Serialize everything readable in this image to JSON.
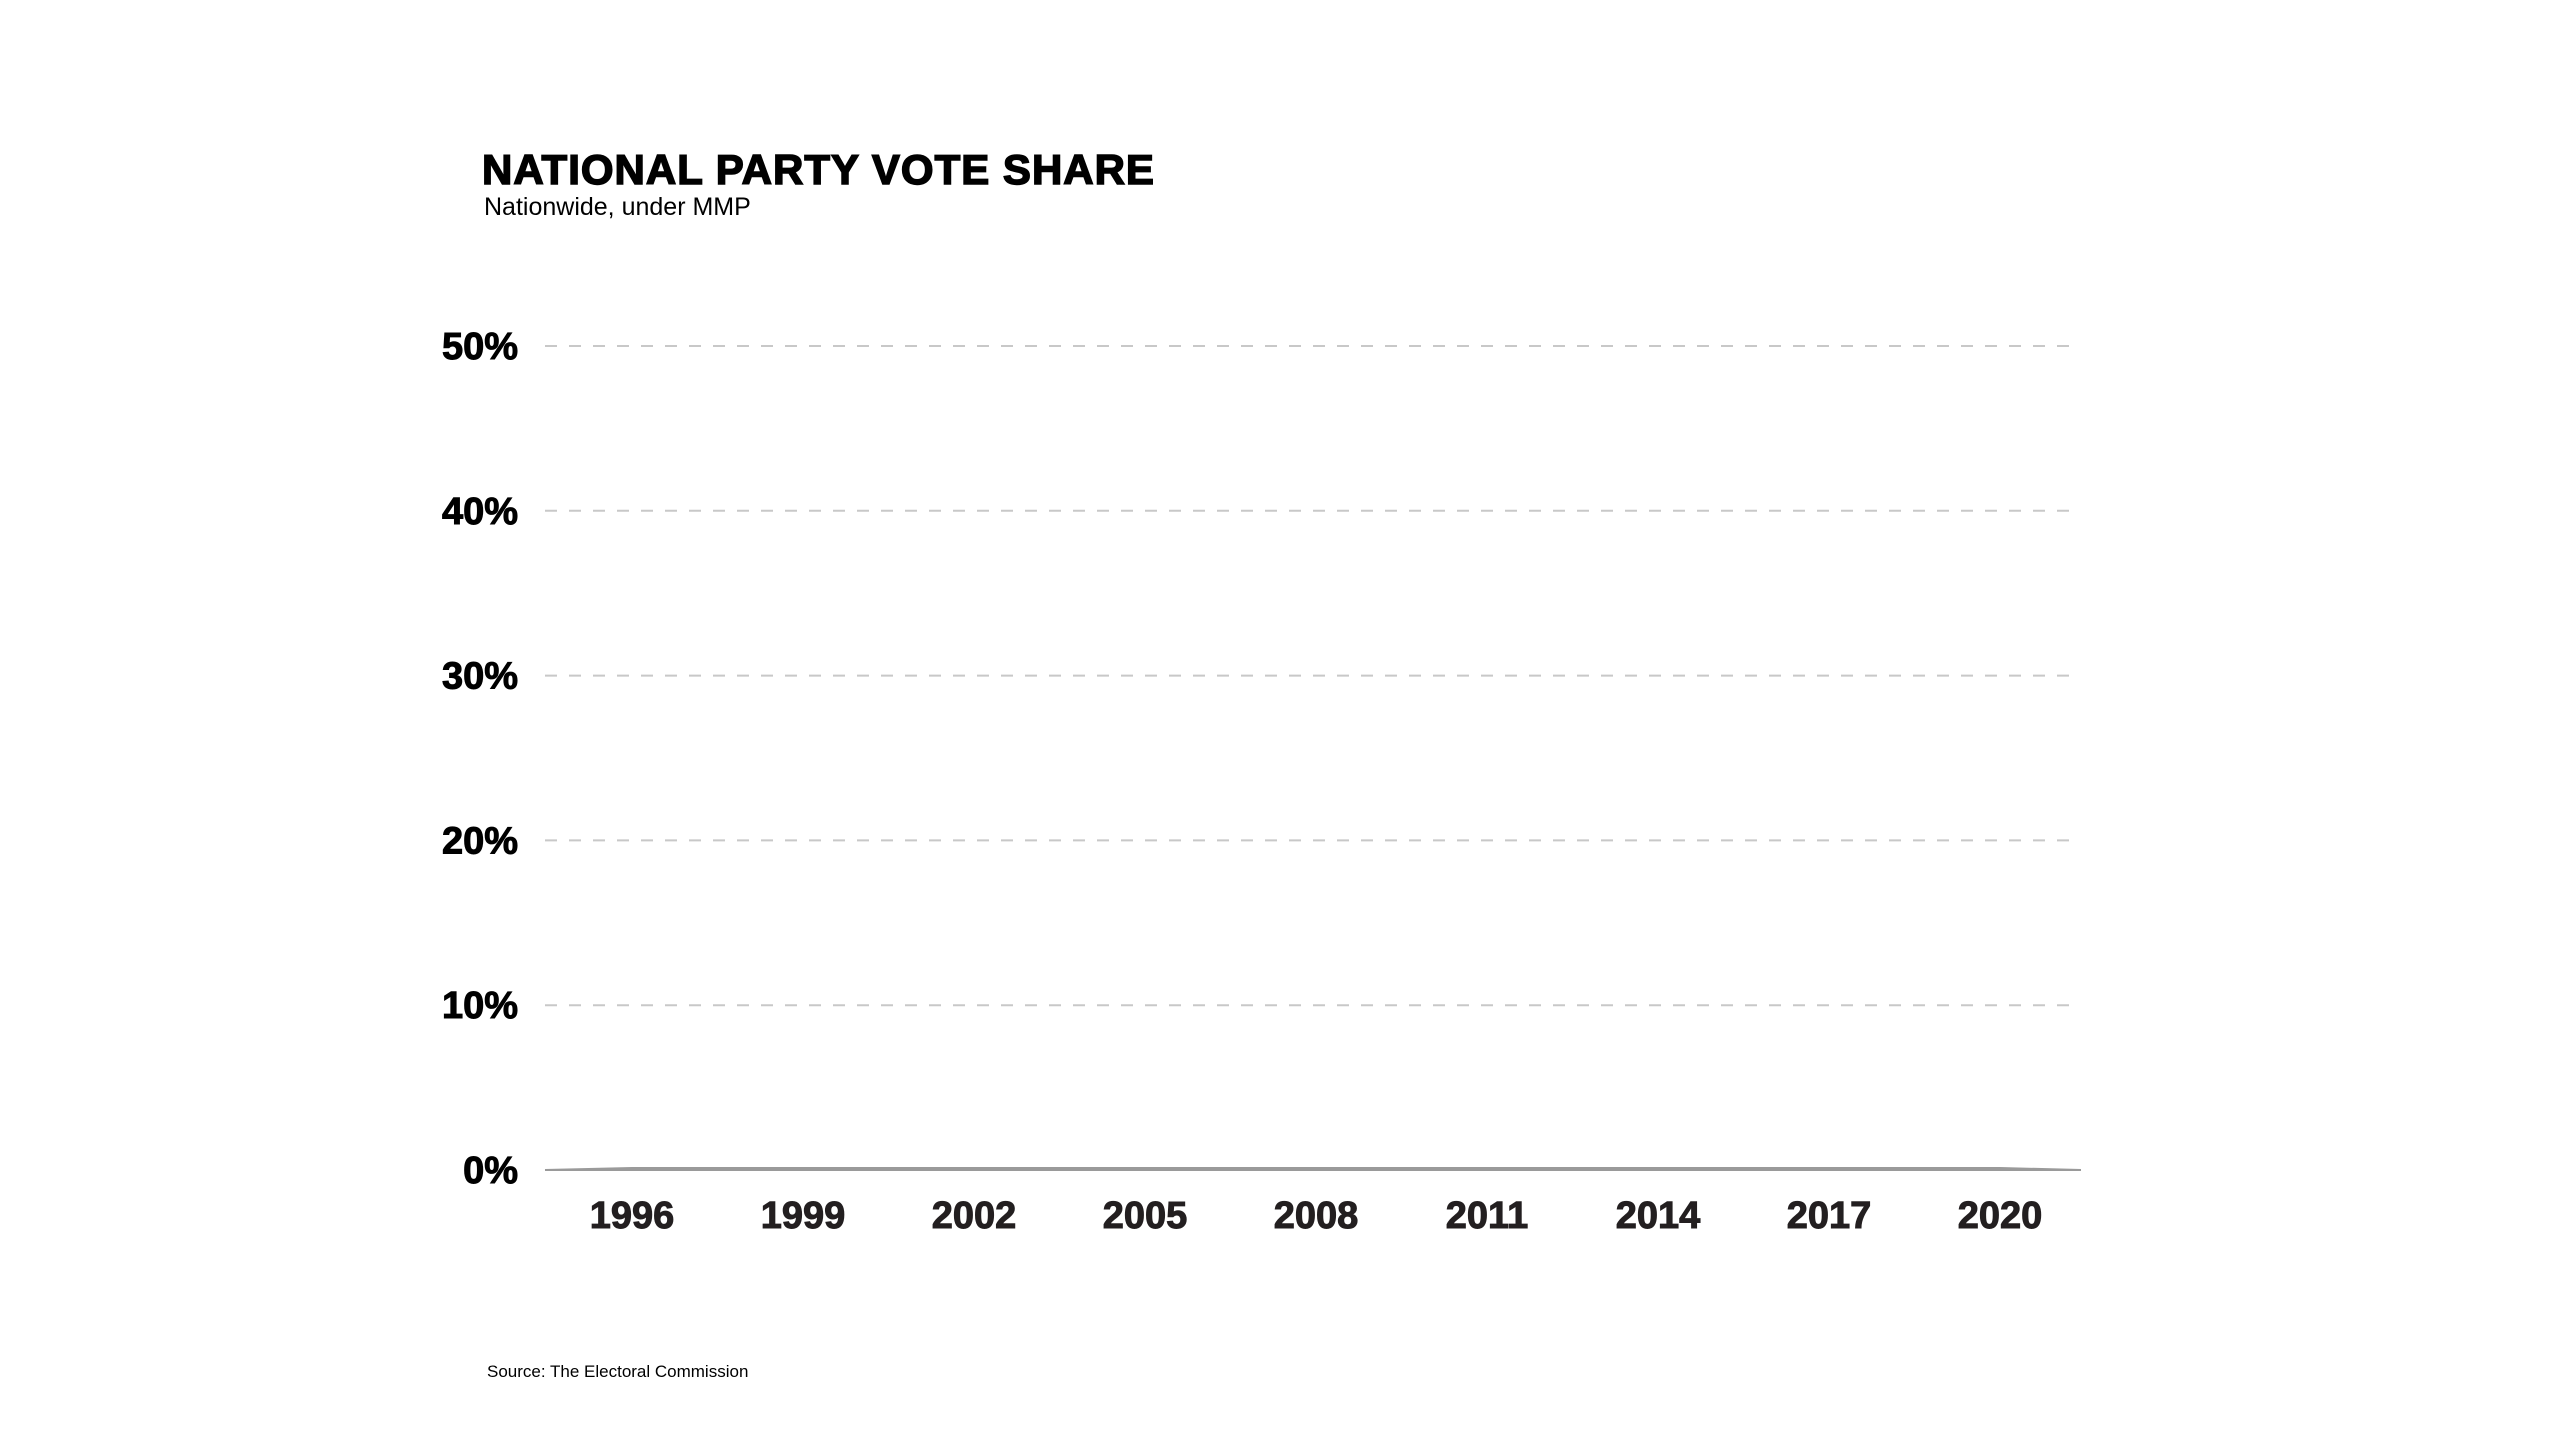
{
  "chart_data": {
    "type": "area",
    "title": "NATIONAL PARTY VOTE SHARE",
    "subtitle": "Nationwide, under MMP",
    "source": "Source: The Electoral Commission",
    "x": [
      "1996",
      "1999",
      "2002",
      "2005",
      "2008",
      "2011",
      "2014",
      "2017",
      "2020"
    ],
    "values": [
      0,
      0,
      0,
      0,
      0,
      0,
      0,
      0,
      0
    ],
    "ylim": [
      0,
      50
    ],
    "yticks": [
      "0%",
      "10%",
      "20%",
      "30%",
      "40%",
      "50%"
    ],
    "ytick_values": [
      0,
      10,
      20,
      30,
      40,
      50
    ],
    "grid": true,
    "colors": {
      "area": "#9a9a9a",
      "grid": "#c8c8c8",
      "text": "#000000"
    }
  }
}
